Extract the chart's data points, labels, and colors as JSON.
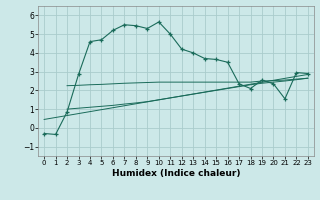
{
  "xlabel": "Humidex (Indice chaleur)",
  "bg_color": "#cce8e8",
  "grid_color": "#aacccc",
  "line_color": "#1a6b5a",
  "xlim": [
    -0.5,
    23.5
  ],
  "ylim": [
    -1.5,
    6.5
  ],
  "xticks": [
    0,
    1,
    2,
    3,
    4,
    5,
    6,
    7,
    8,
    9,
    10,
    11,
    12,
    13,
    14,
    15,
    16,
    17,
    18,
    19,
    20,
    21,
    22,
    23
  ],
  "yticks": [
    -1,
    0,
    1,
    2,
    3,
    4,
    5,
    6
  ],
  "main_curve": {
    "x": [
      0,
      1,
      2,
      3,
      4,
      5,
      6,
      7,
      8,
      9,
      10,
      11,
      12,
      13,
      14,
      15,
      16,
      17,
      18,
      19,
      20,
      21,
      22,
      23
    ],
    "y": [
      -0.3,
      -0.35,
      0.85,
      2.85,
      4.6,
      4.7,
      5.2,
      5.5,
      5.45,
      5.3,
      5.65,
      5.0,
      4.2,
      4.0,
      3.7,
      3.65,
      3.5,
      2.35,
      2.1,
      2.55,
      2.35,
      1.55,
      2.95,
      2.9
    ]
  },
  "upper_curve": {
    "x": [
      2,
      3,
      4,
      5,
      6,
      7,
      8,
      9,
      10,
      11,
      12,
      13,
      14,
      15,
      16,
      17,
      18,
      19,
      20,
      21,
      22,
      23
    ],
    "y": [
      2.25,
      2.27,
      2.3,
      2.32,
      2.35,
      2.38,
      2.4,
      2.42,
      2.44,
      2.44,
      2.44,
      2.44,
      2.44,
      2.44,
      2.44,
      2.44,
      2.44,
      2.5,
      2.52,
      2.55,
      2.6,
      2.65
    ]
  },
  "lower_curve": {
    "x": [
      2,
      3,
      4,
      5,
      6,
      7,
      8,
      9,
      10,
      11,
      12,
      13,
      14,
      15,
      16,
      17,
      18,
      19,
      20,
      21,
      22,
      23
    ],
    "y": [
      1.0,
      1.05,
      1.1,
      1.15,
      1.2,
      1.27,
      1.33,
      1.4,
      1.5,
      1.6,
      1.7,
      1.8,
      1.9,
      2.0,
      2.1,
      2.2,
      2.3,
      2.38,
      2.44,
      2.5,
      2.57,
      2.65
    ]
  },
  "trend_line": {
    "x": [
      0,
      23
    ],
    "y": [
      0.45,
      2.85
    ]
  }
}
